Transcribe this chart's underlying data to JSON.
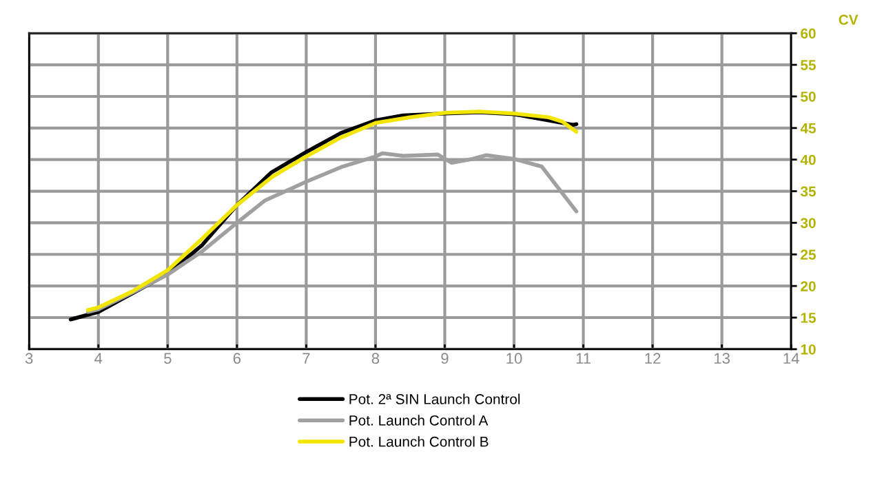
{
  "chart_data": {
    "type": "line",
    "ylabel": "CV",
    "xlim": [
      3,
      14
    ],
    "xticks": [
      3,
      4,
      5,
      6,
      7,
      8,
      9,
      10,
      11,
      12,
      13,
      14
    ],
    "ylim": [
      10,
      60
    ],
    "yticks": [
      10,
      15,
      20,
      25,
      30,
      35,
      40,
      45,
      50,
      55,
      60
    ],
    "grid": true,
    "legend": "bottom",
    "marker": "none",
    "line_style": "solid",
    "series": [
      {
        "name": "Pot. 2ª SIN Launch Control",
        "color": "#000000",
        "x": [
          3.6,
          4.0,
          4.5,
          5.0,
          5.5,
          6.0,
          6.5,
          7.0,
          7.5,
          8.0,
          8.4,
          9.0,
          9.5,
          10.0,
          10.5,
          10.85,
          10.9
        ],
        "values": [
          14.7,
          15.9,
          18.9,
          21.9,
          26.5,
          32.8,
          38.0,
          41.2,
          44.2,
          46.2,
          47.0,
          47.3,
          47.5,
          47.2,
          46.2,
          45.5,
          45.6
        ]
      },
      {
        "name": "Pot. Launch Control A",
        "color": "#a0a0a0",
        "x": [
          3.85,
          4.0,
          4.5,
          5.0,
          5.5,
          6.0,
          6.4,
          6.8,
          7.0,
          7.5,
          8.0,
          8.1,
          8.4,
          8.9,
          9.1,
          9.4,
          9.6,
          10.0,
          10.4,
          10.9
        ],
        "values": [
          15.9,
          16.3,
          19.0,
          21.8,
          25.5,
          30.0,
          33.5,
          35.5,
          36.5,
          38.8,
          40.5,
          41.0,
          40.6,
          40.8,
          39.5,
          40.1,
          40.7,
          40.1,
          38.9,
          31.8
        ]
      },
      {
        "name": "Pot. Launch Control B",
        "color": "#f2e600",
        "x": [
          3.85,
          4.0,
          4.5,
          5.0,
          5.5,
          6.0,
          6.5,
          7.0,
          7.5,
          8.0,
          8.5,
          9.0,
          9.5,
          10.0,
          10.5,
          10.7,
          10.9
        ],
        "values": [
          16.2,
          16.6,
          19.2,
          22.5,
          27.5,
          32.8,
          37.2,
          40.5,
          43.5,
          45.8,
          46.7,
          47.4,
          47.6,
          47.3,
          46.7,
          46.0,
          44.4
        ]
      }
    ]
  }
}
